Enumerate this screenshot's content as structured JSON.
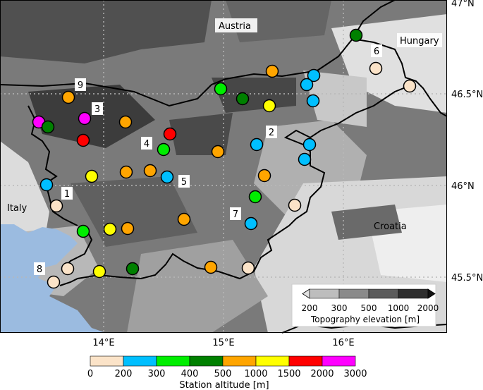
{
  "map": {
    "lat_labels": [
      "47°N",
      "46.5°N",
      "46°N",
      "45.5°N"
    ],
    "lon_labels": [
      "14°E",
      "15°E",
      "16°E"
    ],
    "country_labels": [
      "Austria",
      "Hungary",
      "Italy",
      "Croatia"
    ],
    "station_number_labels": [
      "1",
      "2",
      "3",
      "4",
      "5",
      "6",
      "7",
      "8",
      "9"
    ],
    "colors": {
      "sea": "#9bbbe0",
      "border": "#000000",
      "gridline": "#b8b8b8"
    }
  },
  "topography_legend": {
    "title": "Topography elevation [m]",
    "ticks": [
      "200",
      "300",
      "500",
      "1000",
      "2000"
    ],
    "colors": [
      "#e2e2e2",
      "#bdbdbd",
      "#8a8a8a",
      "#5c5c5c",
      "#2e2e2e",
      "#111111"
    ]
  },
  "altitude_colorbar": {
    "title": "Station altitude [m]",
    "ticks": [
      "0",
      "200",
      "300",
      "400",
      "500",
      "1000",
      "1500",
      "2000",
      "3000"
    ],
    "colors": [
      "#fbe3c8",
      "#00bfff",
      "#00ee00",
      "#008000",
      "#ffa500",
      "#ffff00",
      "#ff0000",
      "#ff00ff"
    ]
  },
  "stations": [
    {
      "number": "1",
      "altitude_class": "0-200"
    },
    {
      "number": "2",
      "altitude_class": "200-300"
    },
    {
      "number": "3",
      "altitude_class": "2000-3000"
    },
    {
      "number": "4",
      "altitude_class": "300-400"
    },
    {
      "number": "5",
      "altitude_class": "200-300"
    },
    {
      "number": "6",
      "altitude_class": "0-200"
    },
    {
      "number": "7",
      "altitude_class": "200-300"
    },
    {
      "number": "8",
      "altitude_class": "0-200"
    },
    {
      "number": "9",
      "altitude_class": "500-1000"
    }
  ]
}
